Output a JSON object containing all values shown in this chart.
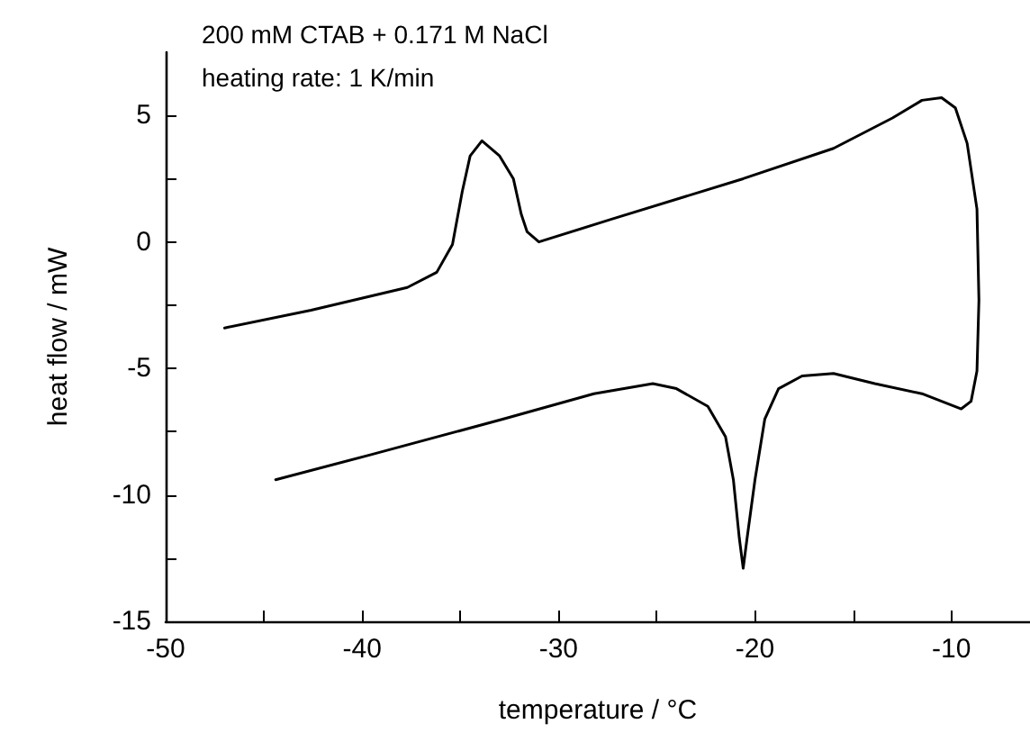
{
  "chart_data": {
    "type": "line",
    "xlabel": "temperature / °C",
    "ylabel": "heat flow / mW",
    "annotations": [
      "200 mM CTAB + 0.171 M NaCl",
      "heating rate: 1 K/min"
    ],
    "xlim": [
      -50,
      -6
    ],
    "ylim": [
      -15,
      7.5
    ],
    "xticks": [
      -50,
      {
        "value": -45,
        "label": null
      },
      -40,
      {
        "value": -35,
        "label": null
      },
      -30,
      {
        "value": -25,
        "label": null
      },
      -20,
      {
        "value": -15,
        "label": null
      },
      -10
    ],
    "yticks": [
      -15,
      {
        "value": -12.5,
        "label": null
      },
      -10,
      {
        "value": -7.5,
        "label": null
      },
      -5,
      {
        "value": -2.5,
        "label": null
      },
      0,
      {
        "value": 2.5,
        "label": null
      },
      5
    ],
    "grid": false,
    "marker": "none",
    "line_style": "solid",
    "series": [
      {
        "color": "#000000",
        "x": [
          -47.0,
          -42.6,
          -37.7,
          -36.2,
          -35.4,
          -34.9,
          -34.5,
          -33.9,
          -33.0,
          -32.3,
          -31.9,
          -31.6,
          -31.0,
          -27.3,
          -20.6,
          -16.0,
          -13.0,
          -11.5,
          -10.5,
          -9.8,
          -9.2,
          -8.7,
          -8.6,
          -8.7,
          -9.0,
          -9.5,
          -11.5,
          -13.9,
          -16.0,
          -17.6,
          -18.8,
          -19.5,
          -20.0,
          -20.4,
          -20.6,
          -20.8,
          -21.1,
          -21.5,
          -22.4,
          -24.0,
          -25.2,
          -28.2,
          -32.8,
          -39.5,
          -44.4
        ],
        "values": [
          -3.4,
          -2.7,
          -1.8,
          -1.2,
          -0.1,
          2.0,
          3.4,
          4.0,
          3.4,
          2.5,
          1.1,
          0.4,
          0.0,
          0.9,
          2.5,
          3.7,
          4.9,
          5.6,
          5.7,
          5.3,
          3.9,
          1.3,
          -2.3,
          -5.1,
          -6.3,
          -6.6,
          -6.0,
          -5.6,
          -5.2,
          -5.3,
          -5.8,
          -7.0,
          -9.4,
          -11.7,
          -12.9,
          -11.7,
          -9.4,
          -7.7,
          -6.5,
          -5.8,
          -5.6,
          -6.0,
          -7.0,
          -8.4,
          -9.4
        ]
      }
    ]
  }
}
